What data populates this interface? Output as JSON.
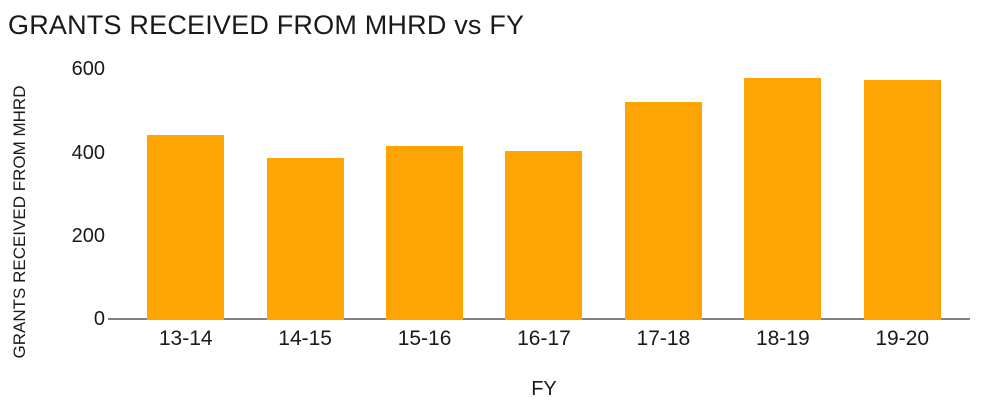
{
  "title": "GRANTS RECEIVED FROM MHRD vs FY",
  "colors": {
    "bar": "#ffa405",
    "axis_line": "#808080",
    "text": "#1a1a1a",
    "background": "#ffffff"
  },
  "chart_data": {
    "type": "bar",
    "title": "GRANTS RECEIVED FROM MHRD vs FY",
    "categories": [
      "13-14",
      "14-15",
      "15-16",
      "16-17",
      "17-18",
      "18-19",
      "19-20"
    ],
    "values": [
      445,
      390,
      418,
      405,
      523,
      580,
      575
    ],
    "xlabel": "FY",
    "ylabel": "GRANTS RECEIVED FROM MHRD",
    "ylim": [
      0,
      600
    ],
    "yticks": [
      0,
      200,
      400,
      600
    ],
    "grid": false,
    "legend": false,
    "bar_color": "#ffa405",
    "background": "#ffffff"
  }
}
